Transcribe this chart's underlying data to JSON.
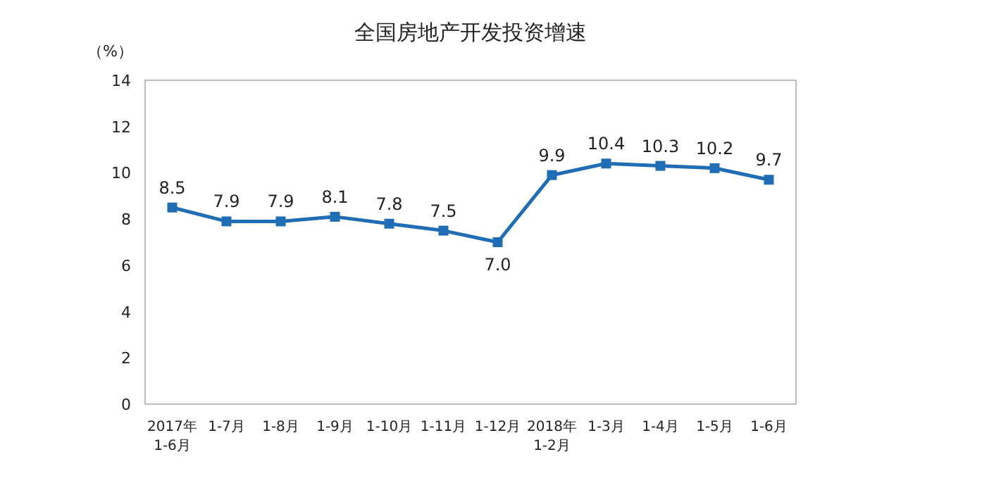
{
  "chart_data": {
    "type": "line",
    "title": "全国房地产开发投资增速",
    "ylabel": "（%）",
    "categories": [
      "2017年\n1-6月",
      "1-7月",
      "1-8月",
      "1-9月",
      "1-10月",
      "1-11月",
      "1-12月",
      "2018年\n1-2月",
      "1-3月",
      "1-4月",
      "1-5月",
      "1-6月"
    ],
    "series": [
      {
        "color": "#1f6db5",
        "values": [
          8.5,
          7.9,
          7.9,
          8.1,
          7.8,
          7.5,
          7.0,
          9.9,
          10.4,
          10.3,
          10.2,
          9.7
        ],
        "value_labels": [
          "8.5",
          "7.9",
          "7.9",
          "8.1",
          "7.8",
          "7.5",
          "7.0",
          "9.9",
          "10.4",
          "10.3",
          "10.2",
          "9.7"
        ]
      }
    ],
    "ylim": [
      0,
      14
    ],
    "yticks": [
      0,
      2,
      4,
      6,
      8,
      10,
      12,
      14
    ],
    "marker": "square"
  }
}
